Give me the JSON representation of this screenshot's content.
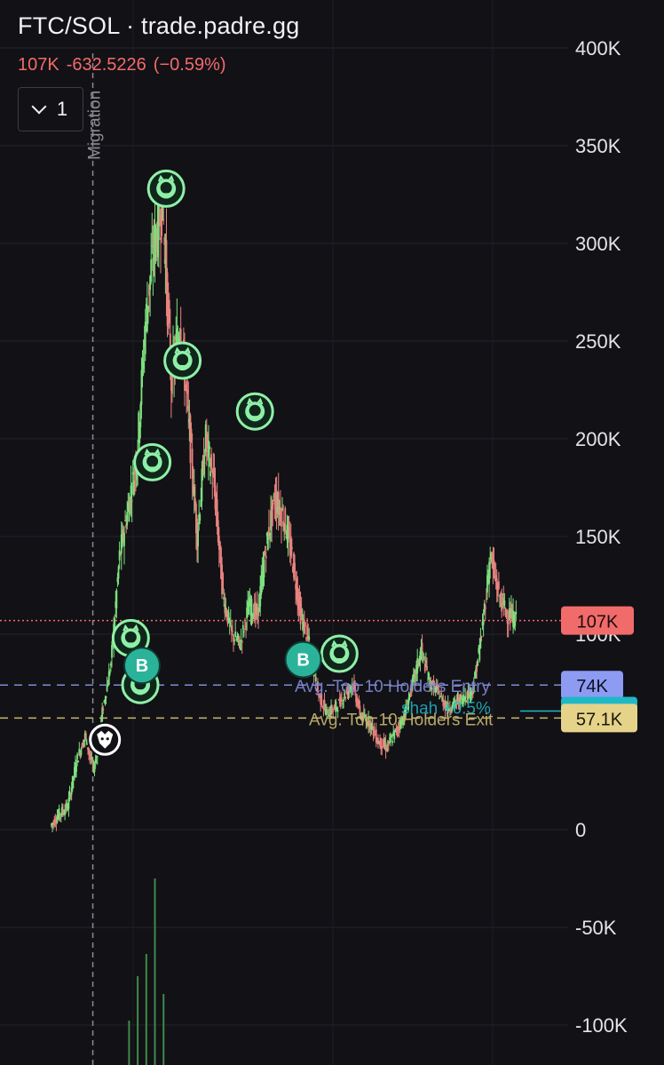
{
  "header": {
    "title": "FTC/SOL · trade.padre.gg",
    "price": "107K",
    "change": "-632.5226",
    "change_pct": "(−0.59%)",
    "collapse_count": "1"
  },
  "colors": {
    "background": "#121116",
    "up": "#7ee07e",
    "down": "#e8837f",
    "current_price": "#f26b6b",
    "entry_line": "#8d9bf2",
    "exit_line": "#e6d38a",
    "holder_line": "#1fb8c7",
    "marker": "#8ef0a8",
    "buy_marker": "#2bb39a"
  },
  "chart_data": {
    "type": "candlestick",
    "title": "FTC/SOL · trade.padre.gg",
    "ylim": [
      -100000,
      400000
    ],
    "y_ticks": [
      {
        "value": 400000,
        "label": "400K"
      },
      {
        "value": 350000,
        "label": "350K"
      },
      {
        "value": 300000,
        "label": "300K"
      },
      {
        "value": 250000,
        "label": "250K"
      },
      {
        "value": 200000,
        "label": "200K"
      },
      {
        "value": 150000,
        "label": "150K"
      },
      {
        "value": 100000,
        "label": "100K"
      },
      {
        "value": 0,
        "label": "0"
      },
      {
        "value": -50000,
        "label": "-50K"
      },
      {
        "value": -100000,
        "label": "-100K"
      }
    ],
    "grid": true,
    "close_path": [
      2000,
      8000,
      12000,
      35000,
      48000,
      30000,
      60000,
      85000,
      140000,
      165000,
      190000,
      260000,
      300000,
      320000,
      230000,
      260000,
      210000,
      150000,
      200000,
      175000,
      120000,
      100000,
      95000,
      115000,
      110000,
      145000,
      170000,
      160000,
      140000,
      110000,
      95000,
      70000,
      60000,
      62000,
      68000,
      75000,
      58000,
      55000,
      45000,
      42000,
      50000,
      58000,
      75000,
      92000,
      75000,
      70000,
      62000,
      65000,
      68000,
      72000,
      100000,
      140000,
      120000,
      110000,
      107000
    ],
    "horizontal_lines": [
      {
        "name": "current",
        "value": 107000,
        "label": "107K",
        "style": "dotted"
      },
      {
        "name": "Avg. Top 10 Holders Entry",
        "value": 74000,
        "label": "74K",
        "style": "dashed"
      },
      {
        "name": "shah +0.5%",
        "value": 60700,
        "label": "60.7K",
        "style": "solid"
      },
      {
        "name": "Avg. Top 10 Holders Exit",
        "value": 57100,
        "label": "57.1K",
        "style": "dashed"
      }
    ],
    "vertical_markers": [
      {
        "label": "Migration",
        "index": 5
      }
    ],
    "volume": [
      {
        "index": 12,
        "value": 0.42
      },
      {
        "index": 11,
        "value": 0.25
      },
      {
        "index": 10,
        "value": 0.2
      },
      {
        "index": 13,
        "value": 0.16
      },
      {
        "index": 9,
        "value": 0.1
      }
    ]
  },
  "annotations": {
    "entry_label": "Avg. Top 10 Holders Entry",
    "exit_label": "Avg. Top 10 Holders Exit",
    "holder_label": "shah +0.5%",
    "migration_label": "Migration",
    "buy_marker_label": "B"
  },
  "markers": [
    {
      "type": "github",
      "index": 13.3,
      "value": 328000
    },
    {
      "type": "github",
      "index": 15.2,
      "value": 240000
    },
    {
      "type": "github",
      "index": 11.7,
      "value": 188000
    },
    {
      "type": "github",
      "index": 23.6,
      "value": 214000
    },
    {
      "type": "github",
      "index": 9.2,
      "value": 98000
    },
    {
      "type": "github",
      "index": 10.3,
      "value": 74000
    },
    {
      "type": "github",
      "index": 33.4,
      "value": 90000
    },
    {
      "type": "buy",
      "index": 10.5,
      "value": 84000
    },
    {
      "type": "buy",
      "index": 29.2,
      "value": 87000
    },
    {
      "type": "eagle",
      "index": 6.2,
      "value": 46000
    }
  ]
}
